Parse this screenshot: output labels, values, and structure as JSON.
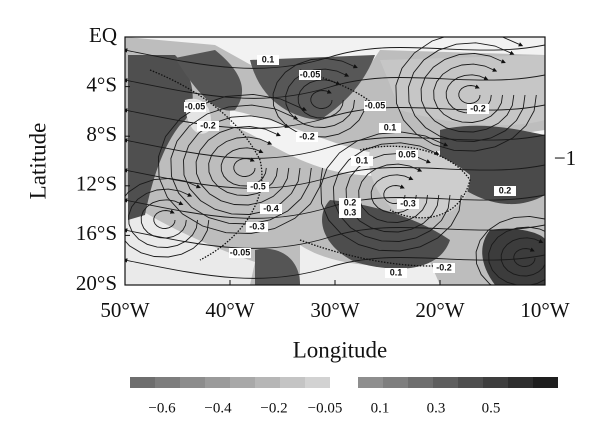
{
  "x_axis": {
    "label": "Longitude",
    "ticks": [
      "50°W",
      "40°W",
      "30°W",
      "20°W",
      "10°W"
    ]
  },
  "y_axis": {
    "label": "Latitude",
    "ticks": [
      "EQ",
      "4°S",
      "8°S",
      "12°S",
      "16°S",
      "20°S"
    ]
  },
  "side_label": "−1",
  "contour_labels": [
    "0.1",
    "-0.05",
    "-0.05",
    "-0.2",
    "-0.2",
    "-0.05",
    "0.1",
    "-0.2",
    "0.1",
    "0.05",
    "-0.5",
    "-0.4",
    "-0.3",
    "-0.05",
    "0.2",
    "0.3",
    "-0.3",
    "0.2",
    "-0.2",
    "0.1"
  ],
  "colorbar": {
    "labels": [
      "−0.6",
      "−0.4",
      "−0.2",
      "−0.05",
      "0.1",
      "0.3",
      "0.5"
    ],
    "negative_colors": [
      "#6e6e6e",
      "#7d7d7d",
      "#8c8c8c",
      "#9a9a9a",
      "#a8a8a8",
      "#b6b6b6",
      "#c4c4c4",
      "#d2d2d2"
    ],
    "positive_colors": [
      "#8e8e8e",
      "#7e7e7e",
      "#6e6e6e",
      "#5e5e5e",
      "#4e4e4e",
      "#3e3e3e",
      "#2e2e2e",
      "#1e1e1e"
    ]
  }
}
